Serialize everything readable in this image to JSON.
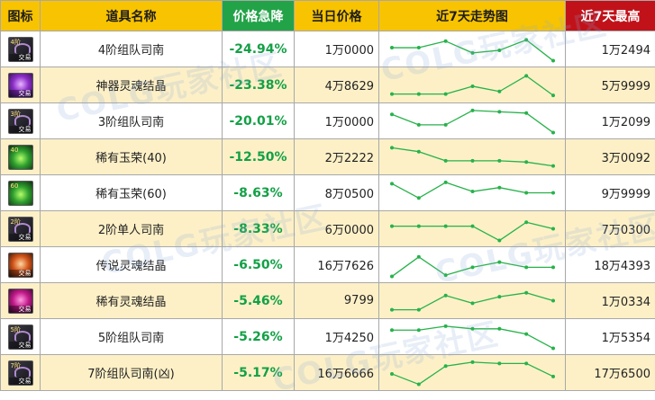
{
  "header": {
    "icon": "图标",
    "name": "道具名称",
    "drop": "价格急降",
    "price": "当日价格",
    "trend": "近7天走势图",
    "high": "近7天最高"
  },
  "colors": {
    "header_bg": "#f8c300",
    "drop_header_bg": "#23a348",
    "high_header_bg": "#c1121a",
    "drop_text": "#13a046",
    "row_alt_bg": "#fdf0c7",
    "trend_line": "#27b24a"
  },
  "watermark": "COLG玩家社区",
  "rows": [
    {
      "icon": "dark-scroll-icon",
      "icon_badge": "4阶",
      "icon_tag": "交易",
      "name": "4阶组队司南",
      "drop": "-24.94%",
      "price": "1万0000",
      "high": "1万2494",
      "trend": [
        0.55,
        0.55,
        0.8,
        0.35,
        0.45,
        0.85,
        0.05
      ]
    },
    {
      "icon": "purple-soul-crystal-icon",
      "icon_badge": "",
      "icon_tag": "交易",
      "name": "神器灵魂结晶",
      "drop": "-23.38%",
      "price": "4万8629",
      "high": "5万9999",
      "trend": [
        0.15,
        0.15,
        0.15,
        0.45,
        0.25,
        0.85,
        0.1
      ]
    },
    {
      "icon": "dark-scroll-icon",
      "icon_badge": "3阶",
      "icon_tag": "交易",
      "name": "3阶组队司南",
      "drop": "-20.01%",
      "price": "1万0000",
      "high": "1万2099",
      "trend": [
        0.75,
        0.35,
        0.35,
        0.9,
        0.85,
        0.8,
        0.05
      ]
    },
    {
      "icon": "green-potion-icon",
      "icon_badge": "40",
      "icon_tag": "",
      "name": "稀有玉荣(40)",
      "drop": "-12.50%",
      "price": "2万2222",
      "high": "3万0092",
      "trend": [
        0.85,
        0.7,
        0.35,
        0.35,
        0.35,
        0.3,
        0.15
      ]
    },
    {
      "icon": "green-potion-icon",
      "icon_badge": "60",
      "icon_tag": "",
      "name": "稀有玉荣(60)",
      "drop": "-8.63%",
      "price": "8万0500",
      "high": "9万9999",
      "trend": [
        0.85,
        0.3,
        0.9,
        0.55,
        0.7,
        0.5,
        0.5
      ]
    },
    {
      "icon": "dark-scroll-icon",
      "icon_badge": "2阶",
      "icon_tag": "交易",
      "name": "2阶单人司南",
      "drop": "-8.33%",
      "price": "6万0000",
      "high": "7万0300",
      "trend": [
        0.6,
        0.6,
        0.6,
        0.6,
        0.05,
        0.75,
        0.5
      ]
    },
    {
      "icon": "orange-soul-crystal-icon",
      "icon_badge": "",
      "icon_tag": "交易",
      "name": "传说灵魂结晶",
      "drop": "-6.50%",
      "price": "16万7626",
      "high": "18万4393",
      "trend": [
        0.05,
        0.8,
        0.1,
        0.4,
        0.6,
        0.4,
        0.4
      ]
    },
    {
      "icon": "magenta-soul-crystal-icon",
      "icon_badge": "",
      "icon_tag": "交易",
      "name": "稀有灵魂结晶",
      "drop": "-5.46%",
      "price": "9799",
      "high": "1万0334",
      "trend": [
        0.15,
        0.15,
        0.7,
        0.4,
        0.65,
        0.8,
        0.5
      ]
    },
    {
      "icon": "dark-scroll-icon",
      "icon_badge": "5阶",
      "icon_tag": "交易",
      "name": "5阶组队司南",
      "drop": "-5.26%",
      "price": "1万4250",
      "high": "1万5354",
      "trend": [
        0.75,
        0.75,
        0.9,
        0.8,
        0.8,
        0.6,
        0.05
      ]
    },
    {
      "icon": "dark-scroll-icon",
      "icon_badge": "7阶",
      "icon_tag": "交易",
      "name": "7阶组队司南(凶)",
      "drop": "-5.17%",
      "price": "16万6666",
      "high": "17万6500",
      "trend": [
        0.45,
        0.05,
        0.75,
        0.9,
        0.85,
        0.85,
        0.35
      ]
    }
  ]
}
